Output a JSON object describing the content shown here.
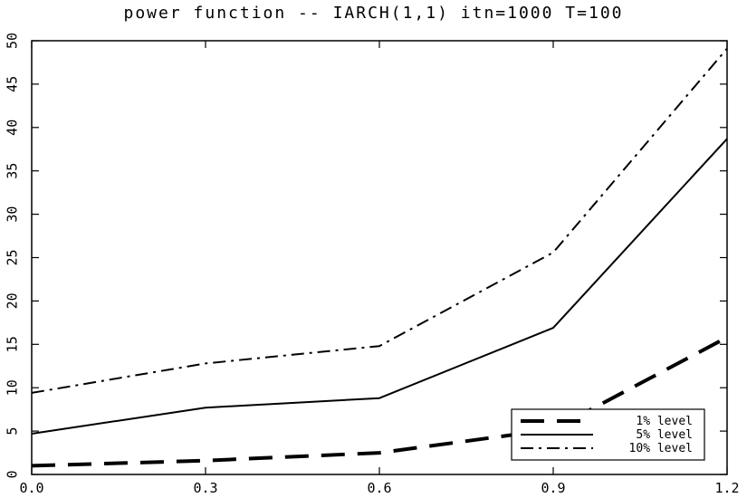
{
  "chart_data": {
    "type": "line",
    "title": "power function -- IARCH(1,1) itn=1000 T=100",
    "xlim": [
      0.0,
      1.2
    ],
    "ylim": [
      0,
      50
    ],
    "x": [
      0.0,
      0.3,
      0.6,
      0.9,
      1.2
    ],
    "x_ticks": [
      "0.0",
      "0.3",
      "0.6",
      "0.9",
      "1.2"
    ],
    "y_ticks": [
      "0",
      "5",
      "10",
      "15",
      "20",
      "25",
      "30",
      "35",
      "40",
      "45",
      "50"
    ],
    "grid": false,
    "legend_position": "bottom-right",
    "series": [
      {
        "name": "1% level",
        "style": "dashed",
        "values": [
          1.0,
          1.6,
          2.5,
          5.2,
          15.8
        ]
      },
      {
        "name": "5% level",
        "style": "solid",
        "values": [
          4.7,
          7.7,
          8.8,
          16.9,
          38.7
        ]
      },
      {
        "name": "10% level",
        "style": "dash-dot",
        "values": [
          9.4,
          12.8,
          14.8,
          25.6,
          49.1
        ]
      }
    ]
  }
}
